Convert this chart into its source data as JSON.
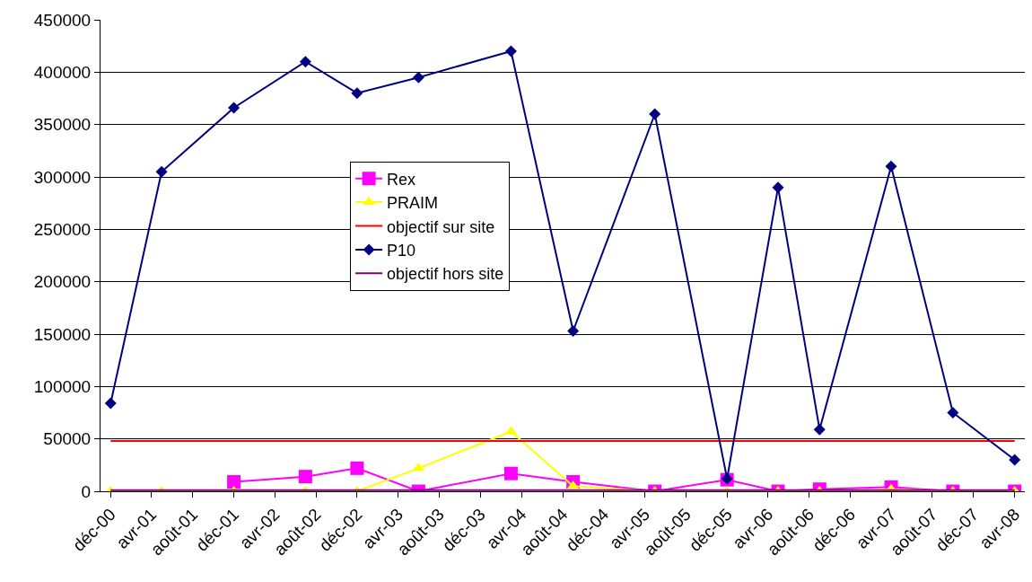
{
  "chart_data": {
    "type": "line",
    "x": [
      "2000-12",
      "2001-05",
      "2001-12",
      "2002-07",
      "2002-12",
      "2003-06",
      "2004-03",
      "2004-09",
      "2005-05",
      "2005-12",
      "2006-05",
      "2006-09",
      "2007-04",
      "2007-10",
      "2008-04"
    ],
    "series": [
      {
        "name": "Rex",
        "color": "#ff00ff",
        "marker": "square",
        "values": [
          null,
          null,
          9000,
          14000,
          22000,
          0,
          17000,
          9000,
          0,
          11000,
          0,
          2000,
          4000,
          0,
          0
        ]
      },
      {
        "name": "PRAIM",
        "color": "#ffff00",
        "marker": "triangle",
        "values": [
          0,
          0,
          0,
          0,
          0,
          22000,
          57000,
          5000,
          0,
          0,
          0,
          0,
          2000,
          0,
          0
        ]
      },
      {
        "name": "objectif sur site",
        "color": "#ff0000",
        "marker": "none",
        "values": [
          48000,
          48000,
          48000,
          48000,
          48000,
          48000,
          48000,
          48000,
          48000,
          48000,
          48000,
          48000,
          48000,
          48000,
          48000
        ]
      },
      {
        "name": "P10",
        "color": "#000080",
        "marker": "diamond",
        "values": [
          84000,
          305000,
          366000,
          410000,
          380000,
          395000,
          420000,
          153000,
          360000,
          12000,
          290000,
          59000,
          310000,
          75000,
          30000
        ]
      },
      {
        "name": "objectif hors site",
        "color": "#800080",
        "marker": "none",
        "values": [
          1000,
          1000,
          1000,
          1000,
          1000,
          1000,
          1000,
          1000,
          1000,
          1000,
          1000,
          1000,
          1000,
          1000,
          1000
        ]
      }
    ],
    "xlim": [
      "2000-11",
      "2008-05"
    ],
    "xticks": [
      {
        "value": "2000-12",
        "label": "déc-00"
      },
      {
        "value": "2001-04",
        "label": "avr-01"
      },
      {
        "value": "2001-08",
        "label": "août-01"
      },
      {
        "value": "2001-12",
        "label": "déc-01"
      },
      {
        "value": "2002-04",
        "label": "avr-02"
      },
      {
        "value": "2002-08",
        "label": "août-02"
      },
      {
        "value": "2002-12",
        "label": "déc-02"
      },
      {
        "value": "2003-04",
        "label": "avr-03"
      },
      {
        "value": "2003-08",
        "label": "août-03"
      },
      {
        "value": "2003-12",
        "label": "déc-03"
      },
      {
        "value": "2004-04",
        "label": "avr-04"
      },
      {
        "value": "2004-08",
        "label": "août-04"
      },
      {
        "value": "2004-12",
        "label": "déc-04"
      },
      {
        "value": "2005-04",
        "label": "avr-05"
      },
      {
        "value": "2005-08",
        "label": "août-05"
      },
      {
        "value": "2005-12",
        "label": "déc-05"
      },
      {
        "value": "2006-04",
        "label": "avr-06"
      },
      {
        "value": "2006-08",
        "label": "août-06"
      },
      {
        "value": "2006-12",
        "label": "déc-06"
      },
      {
        "value": "2007-04",
        "label": "avr-07"
      },
      {
        "value": "2007-08",
        "label": "août-07"
      },
      {
        "value": "2007-12",
        "label": "déc-07"
      },
      {
        "value": "2008-04",
        "label": "avr-08"
      }
    ],
    "ylim": [
      0,
      450000
    ],
    "yticks": [
      0,
      50000,
      100000,
      150000,
      200000,
      250000,
      300000,
      350000,
      400000,
      450000
    ],
    "grid": "y",
    "legend": "center",
    "line_style": "solid"
  }
}
